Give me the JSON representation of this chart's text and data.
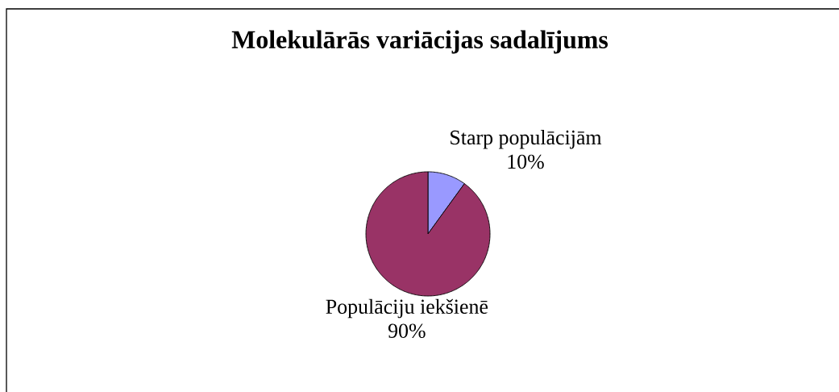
{
  "chart_data": {
    "type": "pie",
    "title": "Molekulārās variācijas sadalījums",
    "categories": [
      "Starp populācijām",
      "Populāciju iekšienē"
    ],
    "values": [
      10,
      90
    ],
    "value_labels": [
      "10%",
      "90%"
    ],
    "colors": [
      "#9999ff",
      "#993366"
    ]
  }
}
